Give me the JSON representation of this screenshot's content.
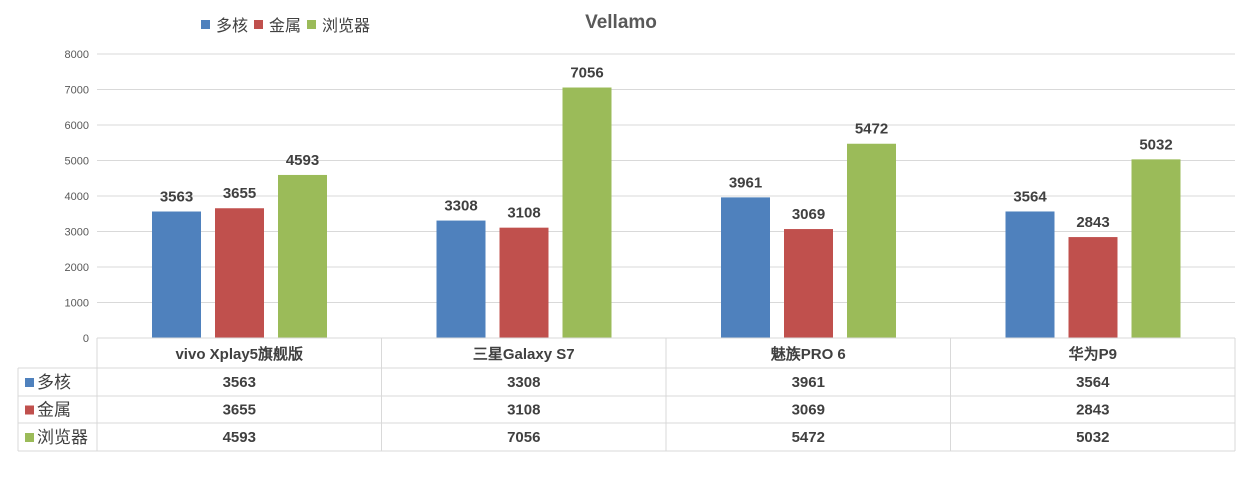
{
  "chart_data": {
    "type": "bar",
    "title": "Vellamo",
    "categories": [
      "vivo Xplay5旗舰版",
      "三星Galaxy S7",
      "魅族PRO 6",
      "华为P9"
    ],
    "series": [
      {
        "name": "多核",
        "values": [
          3563,
          3308,
          3961,
          3564
        ],
        "color": "#4F81BD"
      },
      {
        "name": "金属",
        "values": [
          3655,
          3108,
          3069,
          2843
        ],
        "color": "#C0504D"
      },
      {
        "name": "浏览器",
        "values": [
          4593,
          7056,
          5472,
          5032
        ],
        "color": "#9BBB59"
      }
    ],
    "ylim": [
      0,
      8000
    ],
    "yticks": [
      0,
      1000,
      2000,
      3000,
      4000,
      5000,
      6000,
      7000,
      8000
    ],
    "grid": true,
    "legend": "top-left",
    "data_table": true
  }
}
